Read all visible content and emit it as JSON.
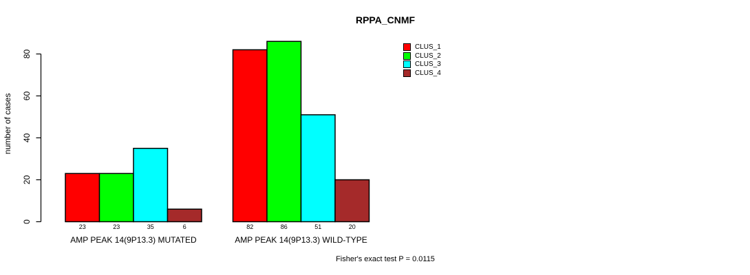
{
  "chart_data": {
    "type": "bar",
    "title": "RPPA_CNMF",
    "ylabel": "number of cases",
    "xlabel": "",
    "ylim": [
      0,
      80
    ],
    "yticks": [
      0,
      20,
      40,
      60,
      80
    ],
    "grid": false,
    "legend_position": "top-right",
    "bar_value_labels": true,
    "categories": [
      "AMP PEAK 14(9P13.3) MUTATED",
      "AMP PEAK 14(9P13.3) WILD-TYPE"
    ],
    "series": [
      {
        "name": "CLUS_1",
        "color": "#FF0000",
        "values": [
          23,
          82
        ]
      },
      {
        "name": "CLUS_2",
        "color": "#00FF00",
        "values": [
          23,
          86
        ]
      },
      {
        "name": "CLUS_3",
        "color": "#00FFFF",
        "values": [
          35,
          51
        ]
      },
      {
        "name": "CLUS_4",
        "color": "#A52A2A",
        "values": [
          6,
          20
        ]
      }
    ],
    "annotation": "Fisher's exact test P = 0.0115"
  }
}
